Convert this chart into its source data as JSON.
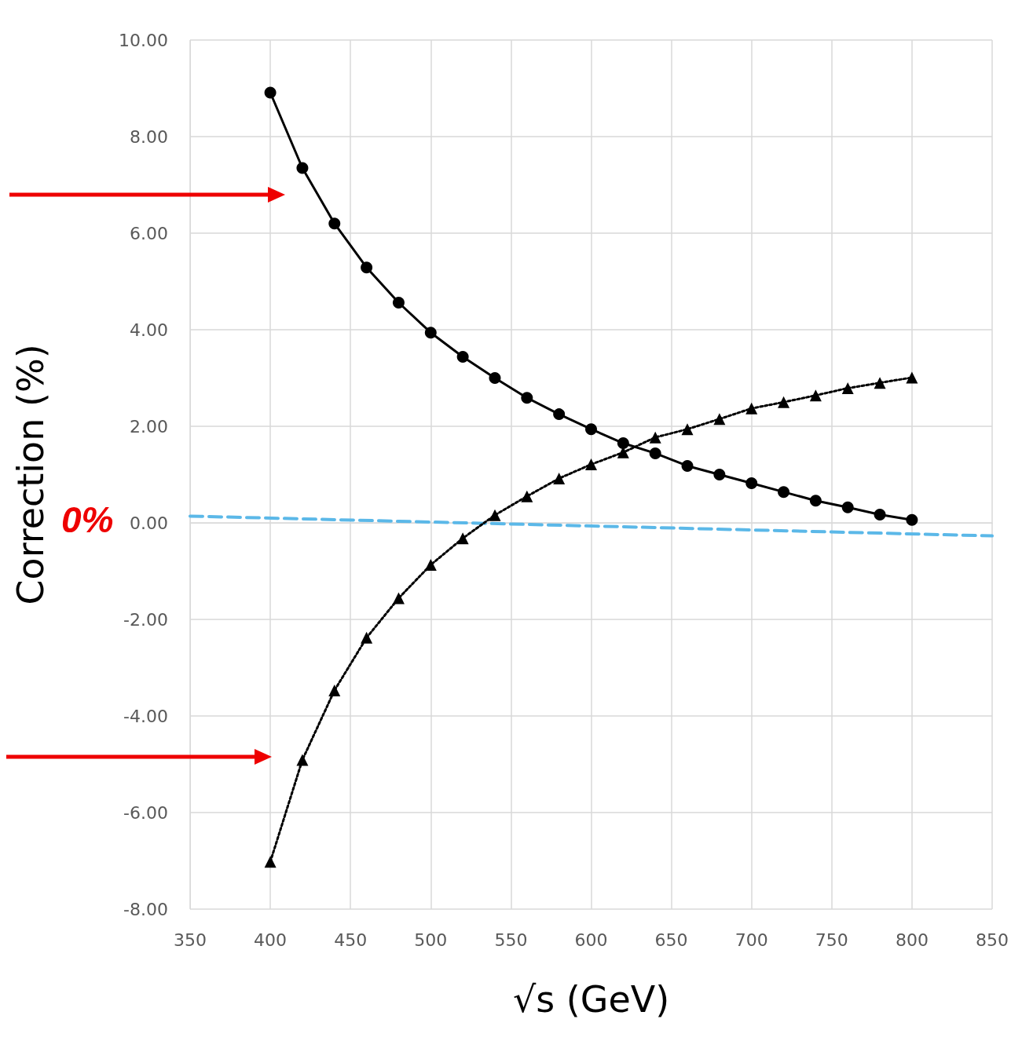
{
  "chart_data": {
    "type": "line",
    "xlabel": "√s (GeV)",
    "ylabel": "Correction (%)",
    "x": [
      400,
      420,
      440,
      460,
      480,
      500,
      520,
      540,
      560,
      580,
      600,
      620,
      640,
      660,
      680,
      700,
      720,
      740,
      760,
      780,
      800
    ],
    "series": [
      {
        "color": "#000000",
        "marker": "circle",
        "line_style": "solid",
        "values": [
          8.91,
          7.35,
          6.2,
          5.29,
          4.56,
          3.94,
          3.44,
          3.0,
          2.59,
          2.25,
          1.94,
          1.65,
          1.44,
          1.18,
          1.0,
          0.82,
          0.64,
          0.46,
          0.32,
          0.17,
          0.06
        ]
      },
      {
        "color": "#000000",
        "marker": "triangle",
        "line_style": "dotted",
        "values": [
          -7.02,
          -4.91,
          -3.47,
          -2.38,
          -1.56,
          -0.87,
          -0.32,
          0.16,
          0.55,
          0.92,
          1.21,
          1.46,
          1.77,
          1.94,
          2.15,
          2.37,
          2.5,
          2.64,
          2.79,
          2.9,
          3.01
        ]
      },
      {
        "color": "#5bb8e8",
        "marker": "none",
        "line_style": "dashed",
        "x": [
          350,
          850
        ],
        "values": [
          0.14,
          -0.27
        ]
      }
    ],
    "xlim": [
      350,
      850
    ],
    "xticks": [
      350,
      400,
      450,
      500,
      550,
      600,
      650,
      700,
      750,
      800,
      850
    ],
    "ylim": [
      -8,
      10
    ],
    "yticks": [
      {
        "value": -8,
        "label": "-8.00"
      },
      {
        "value": -6,
        "label": "-6.00"
      },
      {
        "value": -4,
        "label": "-4.00"
      },
      {
        "value": -2,
        "label": "-2.00"
      },
      {
        "value": 0,
        "label": "0.00"
      },
      {
        "value": 2,
        "label": "2.00"
      },
      {
        "value": 4,
        "label": "4.00"
      },
      {
        "value": 6,
        "label": "6.00"
      },
      {
        "value": 8,
        "label": "8.00"
      },
      {
        "value": 10,
        "label": "10.00"
      }
    ],
    "annotations": [
      "0%"
    ],
    "grid": true
  }
}
